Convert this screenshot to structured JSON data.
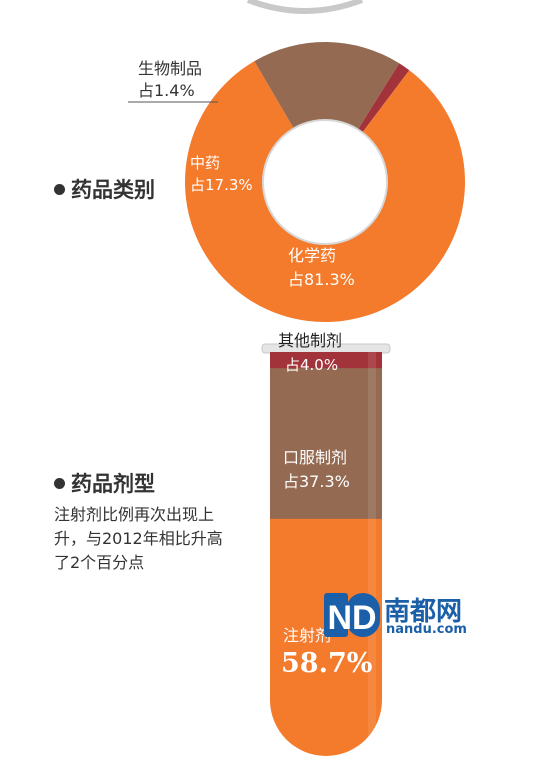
{
  "sections": {
    "category_title": "药品类别",
    "dosage_title": "药品剂型",
    "dosage_caption": "注射剂比例再次出现上升，与2012年相比升高了2个百分点"
  },
  "colors": {
    "orange": "#f47a2c",
    "orange_light": "#f8904a",
    "brown": "#946a52",
    "dark_red": "#a3333a",
    "text": "#333333",
    "logo_blue": "#1b5fa8"
  },
  "logo": {
    "name": "南都网",
    "url": "nandu.com",
    "mark": "ND"
  },
  "chart_data": [
    {
      "type": "pie",
      "variant": "donut",
      "title": "药品类别",
      "slices": [
        {
          "name": "化学药",
          "value": 81.3,
          "label": "化学药",
          "pct_label": "占81.3%",
          "color": "#f47a2c"
        },
        {
          "name": "中药",
          "value": 17.3,
          "label": "中药",
          "pct_label": "占17.3%",
          "color": "#946a52"
        },
        {
          "name": "生物制品",
          "value": 1.4,
          "label": "生物制品",
          "pct_label": "占1.4%",
          "color": "#a3333a"
        }
      ]
    },
    {
      "type": "bar",
      "variant": "stacked-test-tube",
      "title": "药品剂型",
      "segments": [
        {
          "name": "其他制剂",
          "value": 4.0,
          "label": "其他制剂",
          "pct_label": "占4.0%",
          "color": "#a3333a"
        },
        {
          "name": "口服制剂",
          "value": 37.3,
          "label": "口服制剂",
          "pct_label": "占37.3%",
          "color": "#946a52"
        },
        {
          "name": "注射剂",
          "value": 58.7,
          "label": "注射剂",
          "pct_label": "58.7%",
          "color": "#f47a2c"
        }
      ]
    }
  ]
}
